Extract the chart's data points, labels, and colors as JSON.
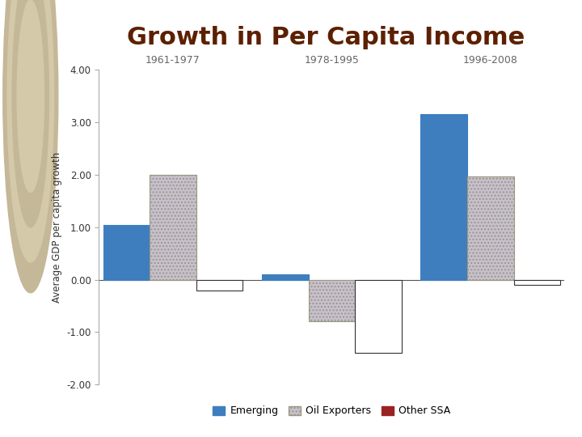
{
  "title": "Growth in Per Capita Income",
  "title_color": "#5c2000",
  "ylabel": "Average GDP per capita growth",
  "groups": [
    "1961-1977",
    "1978-1995",
    "1996-2008"
  ],
  "series": {
    "Emerging": [
      1.05,
      0.1,
      3.15
    ],
    "Oil Exporters": [
      2.0,
      -0.8,
      1.97
    ],
    "Other SSA": [
      -0.2,
      -1.4,
      -0.1
    ]
  },
  "colors": {
    "Emerging": "#3E7EBF",
    "Oil Exporters": "#C8C0D0",
    "Other SSA": "#FFFFFF"
  },
  "edge_colors": {
    "Emerging": "#3E7EBF",
    "Oil Exporters": "#999980",
    "Other SSA": "#333333"
  },
  "hatches": {
    "Emerging": "",
    "Oil Exporters": "....",
    "Other SSA": ""
  },
  "ylim": [
    -2.0,
    4.0
  ],
  "yticks": [
    -2.0,
    -1.0,
    0.0,
    1.0,
    2.0,
    3.0,
    4.0
  ],
  "ytick_labels": [
    "-2.00",
    "-1.00",
    "0.00",
    "1.00",
    "2.00",
    "3.00",
    "4.00"
  ],
  "bar_width": 0.22,
  "background_color": "#FFFFFF",
  "left_panel_color": "#D4C9A8",
  "legend_emerging_color": "#3E7EBF",
  "legend_oil_color": "#C8C0D0",
  "legend_ssa_color": "#9B2222"
}
